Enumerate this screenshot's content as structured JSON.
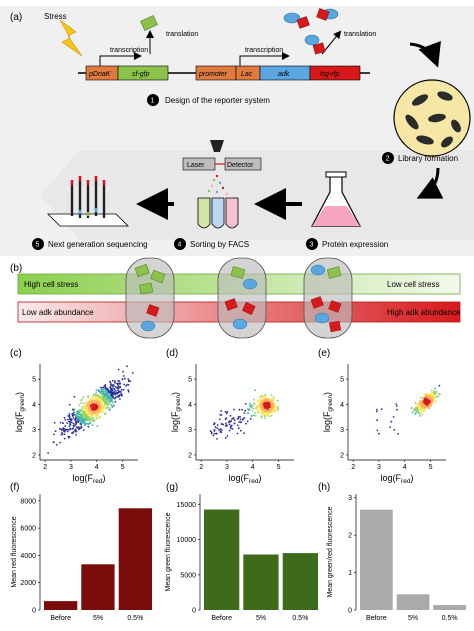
{
  "panels": {
    "a": "(a)",
    "b": "(b)",
    "c": "(c)",
    "d": "(d)",
    "e": "(e)",
    "f": "(f)",
    "g": "(g)",
    "h": "(h)"
  },
  "reporter": {
    "stress": "Stress",
    "transcription_1": "transcription",
    "translation_1": "translation",
    "transcription_2": "transcription",
    "translation_2": "translation",
    "genes": [
      "pDnaK",
      "sf-gfp",
      "promoter",
      "Lac",
      "adk",
      "lsg-rfp"
    ]
  },
  "steps": [
    {
      "num": "1",
      "text": "Design of the reporter system"
    },
    {
      "num": "2",
      "text": "Library formation"
    },
    {
      "num": "3",
      "text": "Protein expression"
    },
    {
      "num": "4",
      "text": "Sorting by FACS"
    },
    {
      "num": "5",
      "text": "Next generation sequencing"
    }
  ],
  "facs": {
    "laser": "Laser",
    "detector": "Detector"
  },
  "gradients": {
    "green_left": "High cell stress",
    "green_right": "Low cell stress",
    "red_left": "Low adk abundance",
    "red_right": "High adk abundance"
  },
  "colors": {
    "gfp_green": "#7dc242",
    "rfp_red": "#d7191c",
    "adk_blue": "#5aa7e0",
    "bar_red": "#7b0c0c",
    "bar_green": "#3d6b1a",
    "bar_gray": "#aaaaaa",
    "arrow_gray": "#e6e6e6"
  },
  "scatter_axes": {
    "xlabel_main": "log(F",
    "xlabel_sub": "red",
    "ylabel_main": "log(F",
    "ylabel_sub": "green",
    "close": ")",
    "xticks": [
      2,
      3,
      4,
      5
    ],
    "yticks": [
      2,
      3,
      4,
      5
    ]
  },
  "chart_data": [
    {
      "type": "bar",
      "panel": "f",
      "categories": [
        "Before",
        "5%",
        "0.5%"
      ],
      "values": [
        650,
        3350,
        7450
      ],
      "ylabel": "Mean red fluorescence",
      "yticks": [
        0,
        2000,
        4000,
        6000,
        8000
      ],
      "ylim": [
        0,
        8500
      ]
    },
    {
      "type": "bar",
      "panel": "g",
      "categories": [
        "Before",
        "5%",
        "0.5%"
      ],
      "values": [
        14300,
        7900,
        8100
      ],
      "ylabel": "Mean green fluorescence",
      "yticks": [
        0,
        5000,
        10000,
        15000
      ],
      "ylim": [
        0,
        16500
      ]
    },
    {
      "type": "bar",
      "panel": "h",
      "categories": [
        "Before",
        "5%",
        "0.5%"
      ],
      "values": [
        2.68,
        0.42,
        0.13
      ],
      "ylabel": "Mean green/red fluorescence",
      "yticks": [
        0,
        1,
        2,
        3
      ],
      "ylim": [
        0,
        3.1
      ]
    },
    {
      "type": "scatter",
      "panel": "c",
      "xlim": [
        1.8,
        5.6
      ],
      "ylim": [
        1.8,
        5.6
      ],
      "center": [
        3.9,
        3.9
      ],
      "spread": "wide diagonal cloud"
    },
    {
      "type": "scatter",
      "panel": "d",
      "xlim": [
        1.8,
        5.6
      ],
      "ylim": [
        1.8,
        5.6
      ],
      "center": [
        4.55,
        3.95
      ],
      "spread": "tight cluster with sparse tail"
    },
    {
      "type": "scatter",
      "panel": "e",
      "xlim": [
        1.8,
        5.6
      ],
      "ylim": [
        1.8,
        5.6
      ],
      "center": [
        4.85,
        4.1
      ],
      "spread": "tight cluster with sparse points left"
    }
  ]
}
